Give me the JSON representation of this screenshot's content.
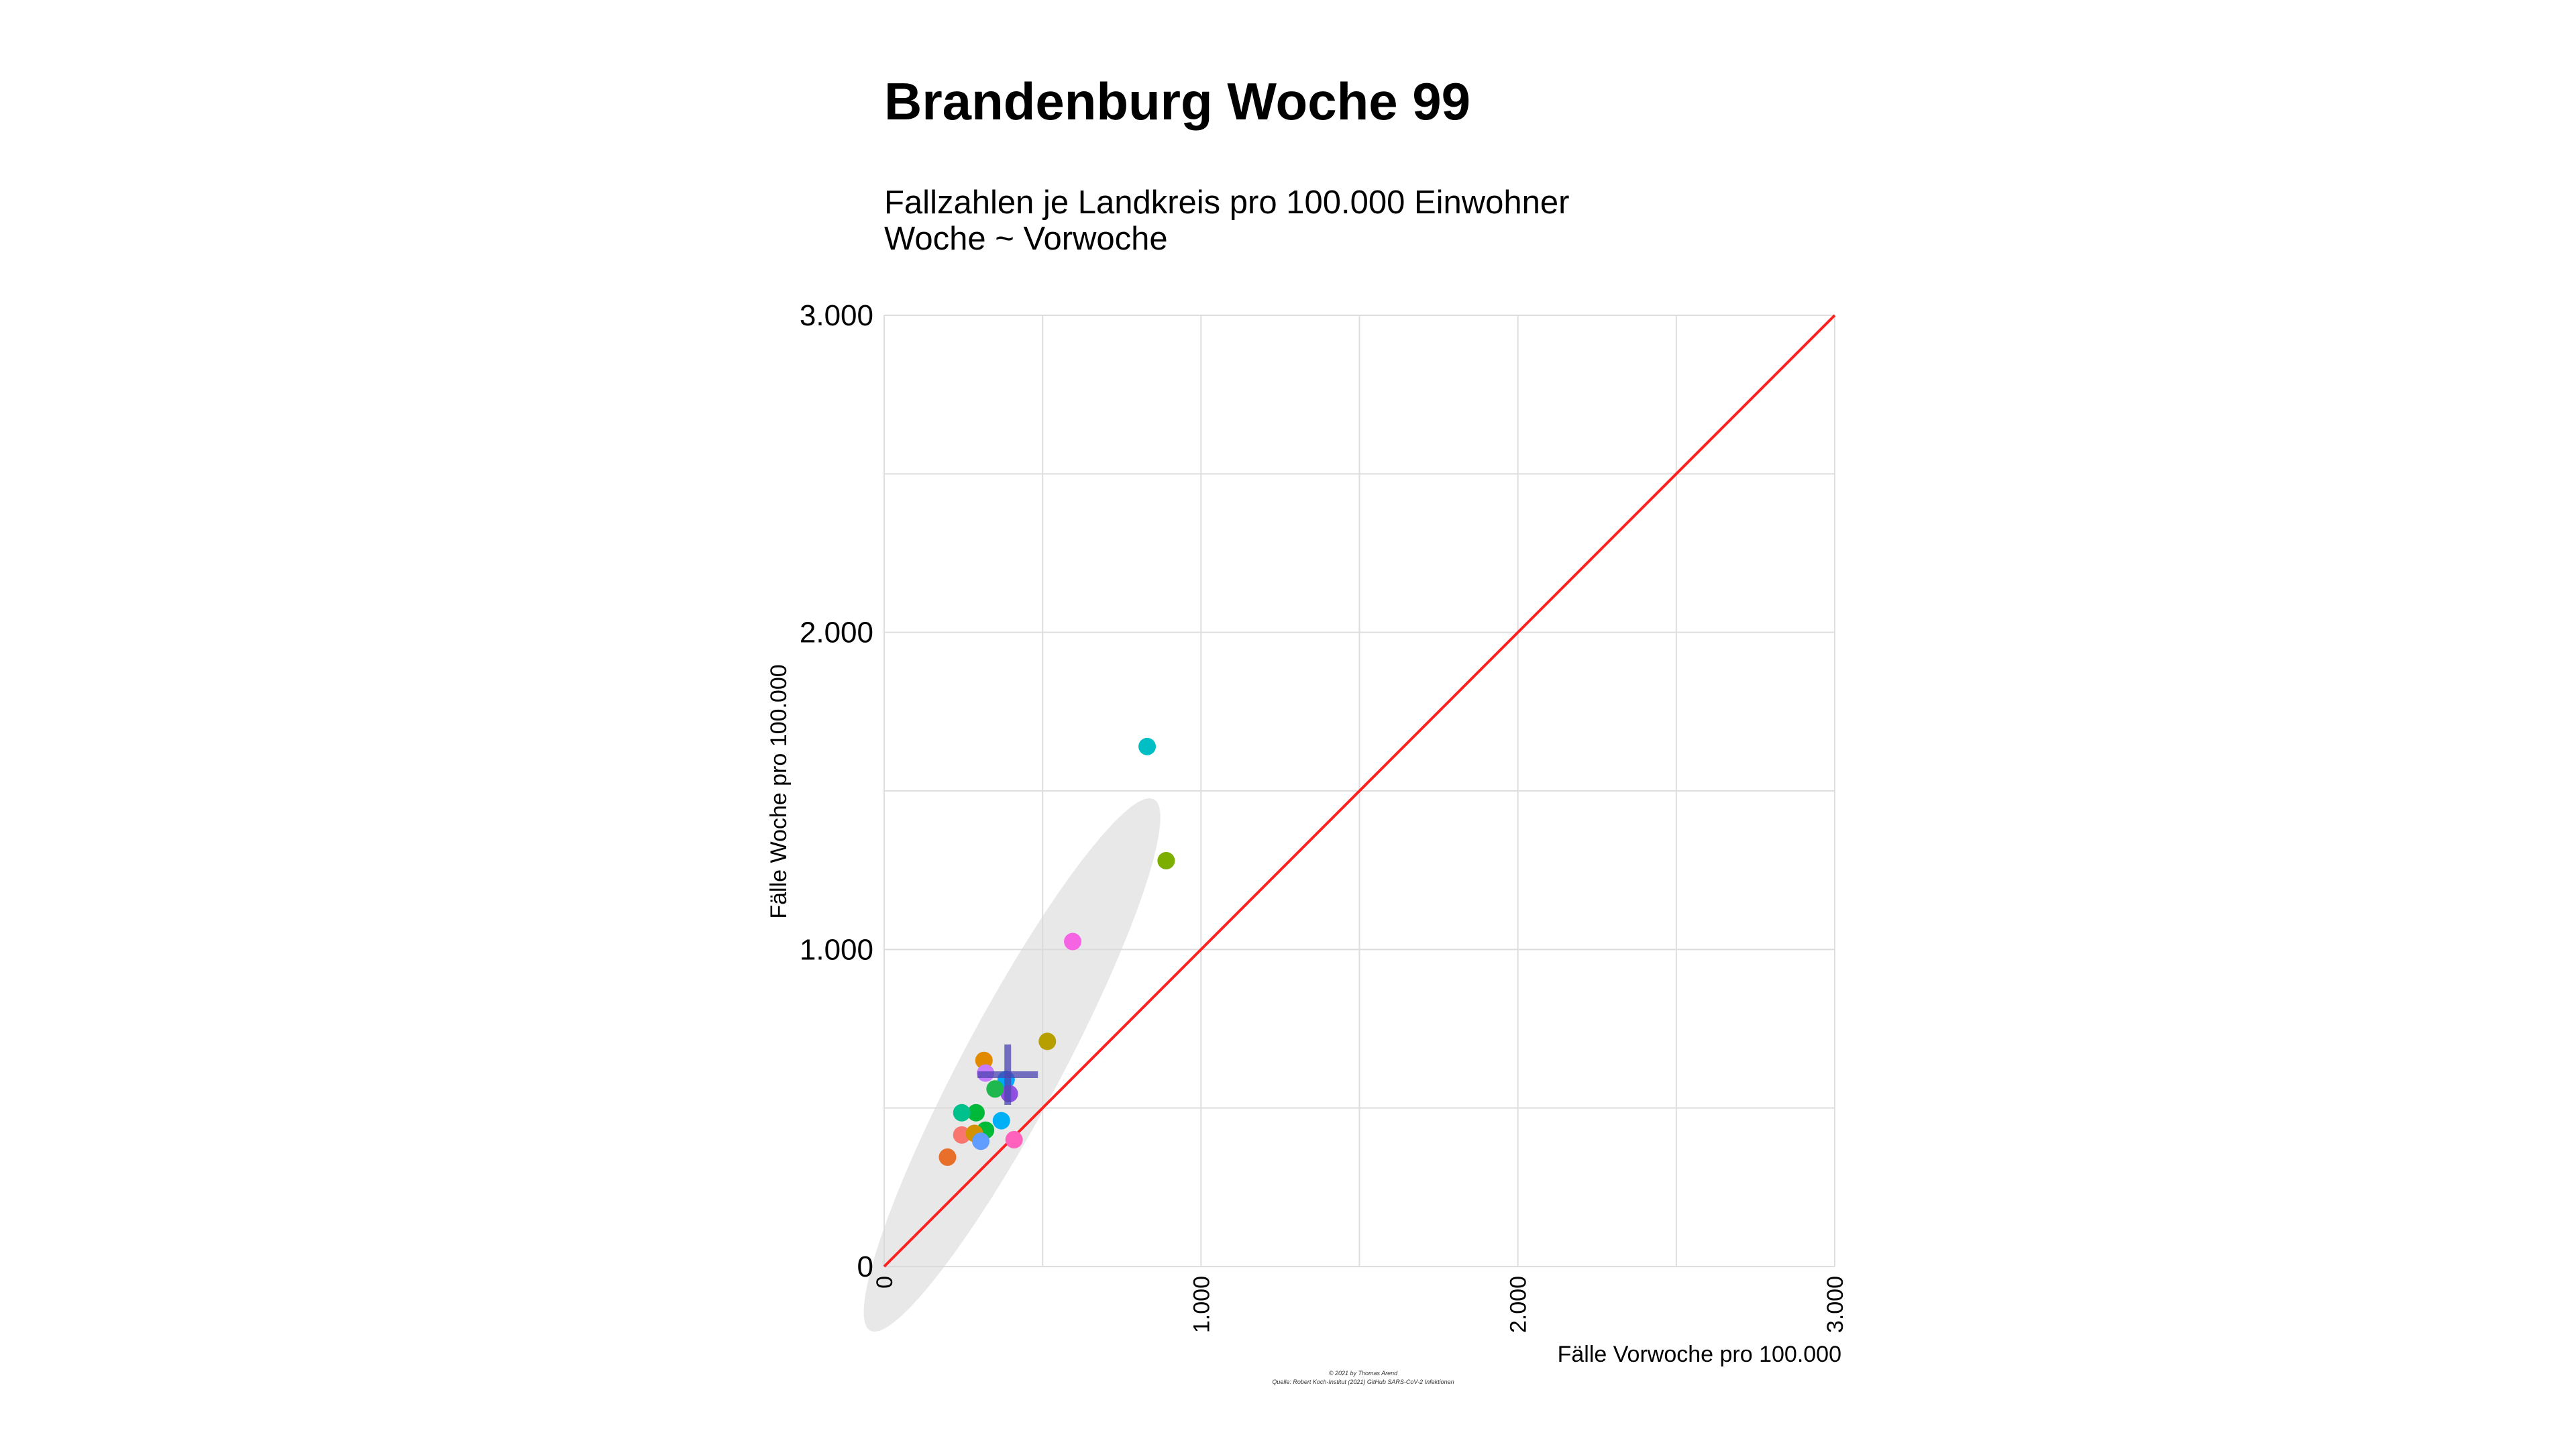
{
  "chart_data": {
    "type": "scatter",
    "title": "Brandenburg Woche 99",
    "subtitle_lines": [
      "Fallzahlen je Landkreis pro 100.000 Einwohner",
      "Woche ~ Vorwoche"
    ],
    "xlabel": "Fälle Vorwoche pro 100.000",
    "ylabel": "Fälle Woche pro 100.000",
    "xlim": [
      0,
      3000
    ],
    "ylim": [
      0,
      3000
    ],
    "x_ticks": [
      0,
      1000,
      2000,
      3000
    ],
    "x_tick_labels": [
      "0",
      "1.000",
      "2.000",
      "3.000"
    ],
    "y_ticks": [
      0,
      1000,
      2000,
      3000
    ],
    "y_tick_labels": [
      "0",
      "1.000",
      "2.000",
      "3.000"
    ],
    "minor_gridlines": [
      500,
      1500,
      2500
    ],
    "grid": true,
    "reference_line": {
      "from": [
        0,
        0
      ],
      "to": [
        3000,
        3000
      ],
      "color": "#ff2020"
    },
    "points": [
      {
        "x": 830,
        "y": 1640,
        "color": "#00bfc4"
      },
      {
        "x": 890,
        "y": 1280,
        "color": "#7cae00"
      },
      {
        "x": 595,
        "y": 1025,
        "color": "#f564e3"
      },
      {
        "x": 515,
        "y": 710,
        "color": "#b79f00"
      },
      {
        "x": 315,
        "y": 650,
        "color": "#e18a00"
      },
      {
        "x": 320,
        "y": 610,
        "color": "#c77cff"
      },
      {
        "x": 385,
        "y": 590,
        "color": "#00a9ff"
      },
      {
        "x": 395,
        "y": 545,
        "color": "#8f4fe0"
      },
      {
        "x": 350,
        "y": 560,
        "color": "#1fb84f"
      },
      {
        "x": 290,
        "y": 485,
        "color": "#00b938"
      },
      {
        "x": 245,
        "y": 485,
        "color": "#00c08b"
      },
      {
        "x": 370,
        "y": 460,
        "color": "#00b0f6"
      },
      {
        "x": 320,
        "y": 430,
        "color": "#00ba38"
      },
      {
        "x": 245,
        "y": 415,
        "color": "#f8766d"
      },
      {
        "x": 285,
        "y": 420,
        "color": "#d39200"
      },
      {
        "x": 410,
        "y": 400,
        "color": "#ff62bc"
      },
      {
        "x": 305,
        "y": 395,
        "color": "#619cff"
      },
      {
        "x": 200,
        "y": 345,
        "color": "#e76f2a"
      }
    ],
    "mean_marker": {
      "x": 390,
      "y": 605,
      "color": "#4b44b0"
    },
    "confidence_ellipse": {
      "color": "#d9d9d9"
    }
  },
  "caption_lines": [
    "© 2021 by Thomas Arend",
    "Quelle: Robert Koch-Institut (2021) GitHub SARS-CoV-2 Infektionen"
  ]
}
